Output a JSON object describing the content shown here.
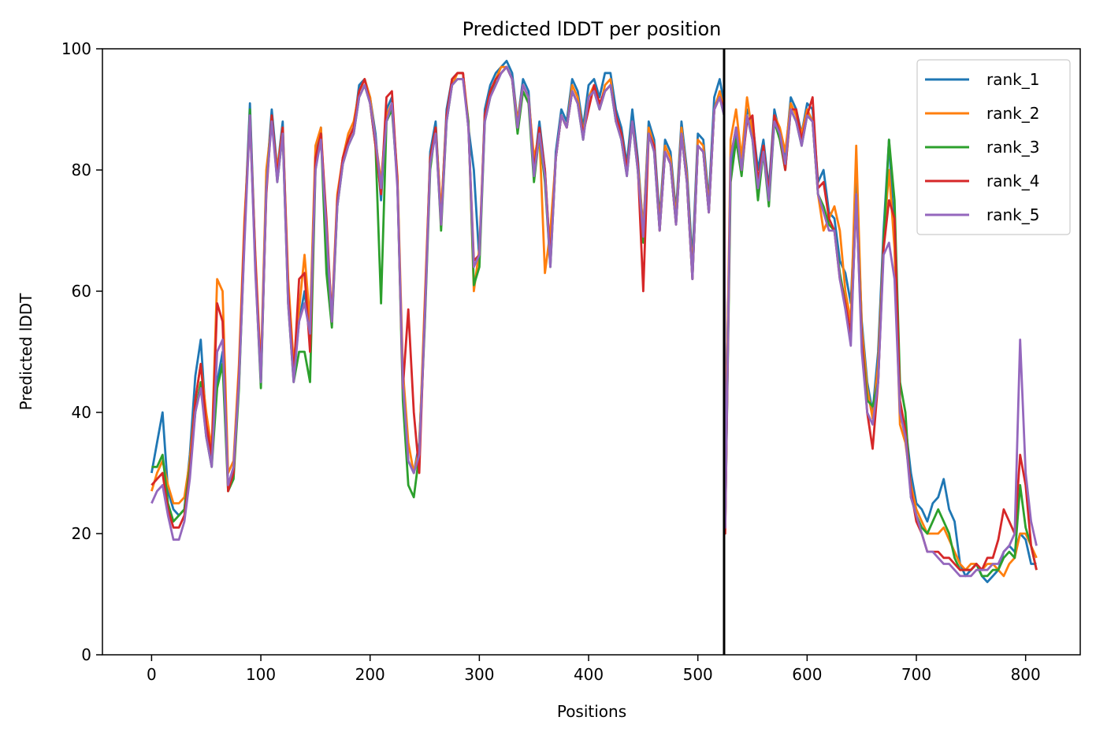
{
  "chart_data": {
    "type": "line",
    "title": "Predicted lDDT per position",
    "xlabel": "Positions",
    "ylabel": "Predicted lDDT",
    "xlim": [
      -45,
      850
    ],
    "ylim": [
      0,
      100
    ],
    "xticks": [
      0,
      100,
      200,
      300,
      400,
      500,
      600,
      700,
      800
    ],
    "yticks": [
      0,
      20,
      40,
      60,
      80,
      100
    ],
    "grid": false,
    "legend_position": "top-right",
    "vline_x": 524,
    "x": [
      0,
      5,
      10,
      15,
      20,
      25,
      30,
      35,
      40,
      45,
      50,
      55,
      60,
      65,
      70,
      75,
      80,
      85,
      90,
      95,
      100,
      105,
      110,
      115,
      120,
      125,
      130,
      135,
      140,
      145,
      150,
      155,
      160,
      165,
      170,
      175,
      180,
      185,
      190,
      195,
      200,
      205,
      210,
      215,
      220,
      225,
      230,
      235,
      240,
      245,
      250,
      255,
      260,
      265,
      270,
      275,
      280,
      285,
      290,
      295,
      300,
      305,
      310,
      315,
      320,
      325,
      330,
      335,
      340,
      345,
      350,
      355,
      360,
      365,
      370,
      375,
      380,
      385,
      390,
      395,
      400,
      405,
      410,
      415,
      420,
      425,
      430,
      435,
      440,
      445,
      450,
      455,
      460,
      465,
      470,
      475,
      480,
      485,
      490,
      495,
      500,
      505,
      510,
      515,
      520,
      524,
      525,
      530,
      535,
      540,
      545,
      550,
      555,
      560,
      565,
      570,
      575,
      580,
      585,
      590,
      595,
      600,
      605,
      610,
      615,
      620,
      625,
      630,
      635,
      640,
      645,
      650,
      655,
      660,
      665,
      670,
      675,
      680,
      685,
      690,
      695,
      700,
      705,
      710,
      715,
      720,
      725,
      730,
      735,
      740,
      745,
      750,
      755,
      760,
      765,
      770,
      775,
      780,
      785,
      790,
      795,
      800,
      805,
      810
    ],
    "series": [
      {
        "name": "rank_1",
        "color": "#1f77b4",
        "values": [
          30,
          35,
          40,
          27,
          24,
          23,
          24,
          33,
          46,
          52,
          38,
          32,
          45,
          50,
          28,
          30,
          45,
          70,
          91,
          65,
          45,
          78,
          90,
          80,
          88,
          60,
          46,
          55,
          60,
          52,
          82,
          87,
          65,
          55,
          75,
          82,
          85,
          87,
          94,
          95,
          92,
          86,
          75,
          90,
          92,
          78,
          45,
          32,
          30,
          35,
          55,
          83,
          88,
          72,
          90,
          95,
          96,
          96,
          87,
          80,
          65,
          90,
          94,
          96,
          97,
          98,
          96,
          88,
          95,
          93,
          80,
          88,
          80,
          65,
          83,
          90,
          88,
          95,
          93,
          87,
          94,
          95,
          92,
          96,
          96,
          90,
          87,
          81,
          90,
          82,
          70,
          88,
          85,
          72,
          85,
          83,
          73,
          88,
          80,
          65,
          86,
          85,
          75,
          92,
          95,
          91,
          30,
          80,
          86,
          80,
          90,
          88,
          80,
          85,
          77,
          90,
          86,
          82,
          92,
          90,
          86,
          91,
          90,
          78,
          80,
          73,
          72,
          65,
          63,
          58,
          78,
          55,
          45,
          40,
          50,
          70,
          85,
          68,
          40,
          38,
          30,
          25,
          24,
          22,
          25,
          26,
          29,
          24,
          22,
          15,
          13,
          14,
          15,
          13,
          12,
          13,
          14,
          17,
          18,
          17,
          20,
          19,
          15,
          15
        ]
      },
      {
        "name": "rank_2",
        "color": "#ff7f0e",
        "values": [
          27,
          30,
          32,
          28,
          25,
          25,
          26,
          32,
          42,
          48,
          40,
          34,
          62,
          60,
          30,
          32,
          48,
          72,
          88,
          66,
          47,
          80,
          88,
          80,
          87,
          62,
          48,
          57,
          66,
          55,
          84,
          87,
          70,
          56,
          76,
          82,
          86,
          88,
          93,
          95,
          92,
          85,
          78,
          89,
          91,
          79,
          47,
          35,
          30,
          34,
          58,
          82,
          87,
          73,
          89,
          94,
          96,
          96,
          88,
          60,
          67,
          89,
          93,
          95,
          97,
          97,
          95,
          88,
          94,
          92,
          82,
          86,
          63,
          70,
          82,
          89,
          87,
          94,
          92,
          86,
          92,
          94,
          90,
          94,
          95,
          88,
          86,
          80,
          88,
          81,
          70,
          87,
          84,
          71,
          84,
          82,
          72,
          87,
          79,
          63,
          85,
          84,
          74,
          90,
          93,
          90,
          26,
          85,
          90,
          82,
          92,
          86,
          76,
          84,
          75,
          89,
          87,
          83,
          91,
          89,
          86,
          90,
          88,
          76,
          70,
          72,
          74,
          70,
          60,
          55,
          84,
          54,
          44,
          39,
          48,
          68,
          80,
          67,
          38,
          35,
          28,
          24,
          22,
          20,
          20,
          20,
          21,
          19,
          17,
          15,
          14,
          15,
          15,
          14,
          15,
          15,
          14,
          13,
          15,
          16,
          20,
          20,
          18,
          16
        ]
      },
      {
        "name": "rank_3",
        "color": "#2ca02c",
        "values": [
          31,
          31,
          33,
          25,
          22,
          23,
          24,
          31,
          40,
          45,
          36,
          31,
          44,
          48,
          27,
          29,
          44,
          69,
          90,
          64,
          44,
          77,
          89,
          78,
          86,
          58,
          45,
          50,
          50,
          45,
          80,
          86,
          63,
          54,
          74,
          81,
          84,
          86,
          92,
          94,
          91,
          84,
          58,
          88,
          90,
          78,
          42,
          28,
          26,
          33,
          54,
          80,
          87,
          70,
          88,
          94,
          95,
          95,
          88,
          61,
          64,
          88,
          92,
          95,
          96,
          97,
          95,
          86,
          93,
          91,
          78,
          86,
          78,
          64,
          82,
          89,
          87,
          93,
          91,
          85,
          92,
          93,
          90,
          93,
          94,
          88,
          85,
          79,
          88,
          80,
          68,
          86,
          83,
          70,
          83,
          81,
          71,
          86,
          78,
          62,
          84,
          83,
          73,
          90,
          92,
          89,
          21,
          78,
          85,
          79,
          89,
          85,
          75,
          83,
          74,
          88,
          85,
          80,
          90,
          88,
          84,
          89,
          88,
          76,
          74,
          71,
          70,
          63,
          58,
          52,
          76,
          52,
          42,
          41,
          45,
          68,
          85,
          75,
          45,
          40,
          26,
          23,
          21,
          20,
          22,
          24,
          22,
          20,
          16,
          14,
          14,
          14,
          15,
          13,
          13,
          14,
          14,
          16,
          17,
          16,
          28,
          21,
          18,
          14
        ]
      },
      {
        "name": "rank_4",
        "color": "#d62728",
        "values": [
          28,
          29,
          30,
          24,
          21,
          21,
          23,
          30,
          42,
          48,
          38,
          33,
          58,
          55,
          27,
          30,
          46,
          70,
          89,
          65,
          46,
          76,
          89,
          79,
          87,
          60,
          46,
          62,
          63,
          50,
          82,
          86,
          72,
          55,
          75,
          82,
          85,
          87,
          93,
          95,
          91,
          84,
          76,
          92,
          93,
          78,
          44,
          57,
          40,
          30,
          56,
          82,
          87,
          71,
          89,
          95,
          96,
          96,
          87,
          65,
          66,
          89,
          93,
          95,
          96,
          97,
          95,
          87,
          94,
          92,
          80,
          87,
          80,
          65,
          82,
          89,
          87,
          93,
          91,
          86,
          90,
          94,
          91,
          93,
          94,
          89,
          86,
          80,
          88,
          81,
          60,
          86,
          84,
          70,
          83,
          81,
          71,
          86,
          78,
          62,
          84,
          83,
          73,
          90,
          92,
          90,
          20,
          82,
          87,
          80,
          88,
          89,
          78,
          84,
          76,
          89,
          86,
          80,
          90,
          90,
          85,
          89,
          92,
          77,
          78,
          72,
          70,
          62,
          58,
          53,
          75,
          52,
          40,
          34,
          45,
          67,
          75,
          72,
          42,
          37,
          27,
          22,
          20,
          17,
          17,
          17,
          16,
          16,
          15,
          14,
          14,
          14,
          15,
          14,
          16,
          16,
          19,
          24,
          22,
          20,
          33,
          28,
          18,
          14
        ]
      },
      {
        "name": "rank_5",
        "color": "#9467bd",
        "values": [
          25,
          27,
          28,
          23,
          19,
          19,
          22,
          29,
          40,
          44,
          36,
          31,
          50,
          52,
          28,
          31,
          45,
          68,
          89,
          63,
          45,
          77,
          88,
          78,
          86,
          58,
          45,
          55,
          58,
          53,
          80,
          85,
          70,
          55,
          74,
          81,
          84,
          86,
          92,
          94,
          91,
          85,
          77,
          88,
          91,
          77,
          45,
          32,
          30,
          33,
          55,
          81,
          86,
          71,
          88,
          94,
          95,
          95,
          87,
          64,
          66,
          88,
          92,
          94,
          96,
          97,
          95,
          87,
          94,
          92,
          79,
          86,
          79,
          64,
          82,
          89,
          87,
          93,
          91,
          85,
          92,
          93,
          90,
          93,
          94,
          88,
          85,
          79,
          88,
          80,
          69,
          86,
          83,
          70,
          83,
          81,
          71,
          86,
          78,
          62,
          84,
          83,
          73,
          90,
          92,
          89,
          21,
          82,
          87,
          80,
          89,
          85,
          77,
          83,
          75,
          88,
          86,
          81,
          90,
          88,
          84,
          89,
          88,
          76,
          73,
          70,
          70,
          62,
          57,
          51,
          76,
          50,
          40,
          38,
          45,
          66,
          68,
          62,
          40,
          36,
          26,
          23,
          20,
          17,
          17,
          16,
          15,
          15,
          14,
          13,
          13,
          13,
          14,
          14,
          14,
          15,
          15,
          17,
          18,
          20,
          52,
          30,
          22,
          18
        ]
      }
    ]
  }
}
